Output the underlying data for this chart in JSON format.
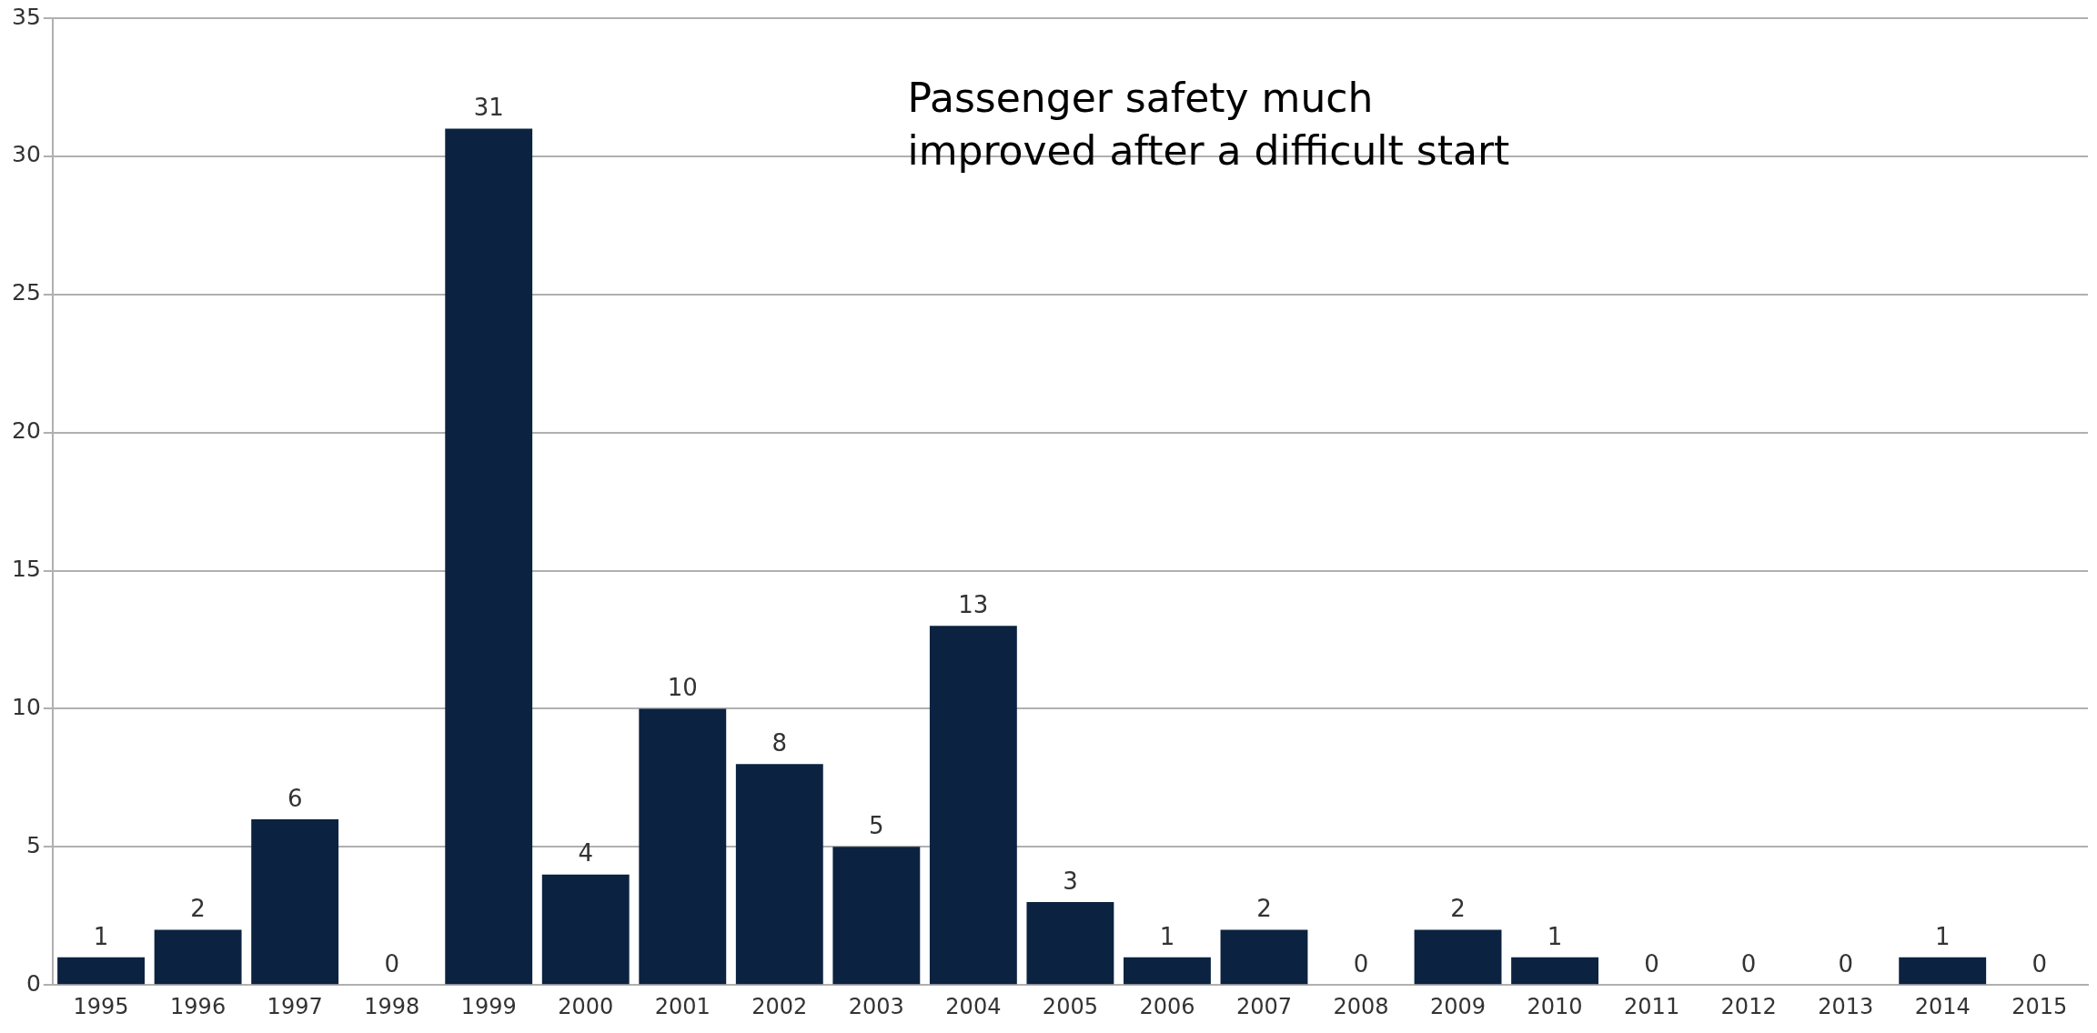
{
  "chart_data": {
    "type": "bar",
    "categories": [
      "1995",
      "1996",
      "1997",
      "1998",
      "1999",
      "2000",
      "2001",
      "2002",
      "2003",
      "2004",
      "2005",
      "2006",
      "2007",
      "2008",
      "2009",
      "2010",
      "2011",
      "2012",
      "2013",
      "2014",
      "2015"
    ],
    "values": [
      1,
      2,
      6,
      0,
      31,
      4,
      10,
      8,
      5,
      13,
      3,
      1,
      2,
      0,
      2,
      1,
      0,
      0,
      0,
      1,
      0
    ],
    "color": "#0b2240",
    "ylim": [
      0,
      35
    ],
    "yticks": [
      0,
      5,
      10,
      15,
      20,
      25,
      30,
      35
    ],
    "grid": "y",
    "legend": false,
    "data_labels": true,
    "annotations": [
      "Passenger safety much improved after a difficult start"
    ]
  }
}
